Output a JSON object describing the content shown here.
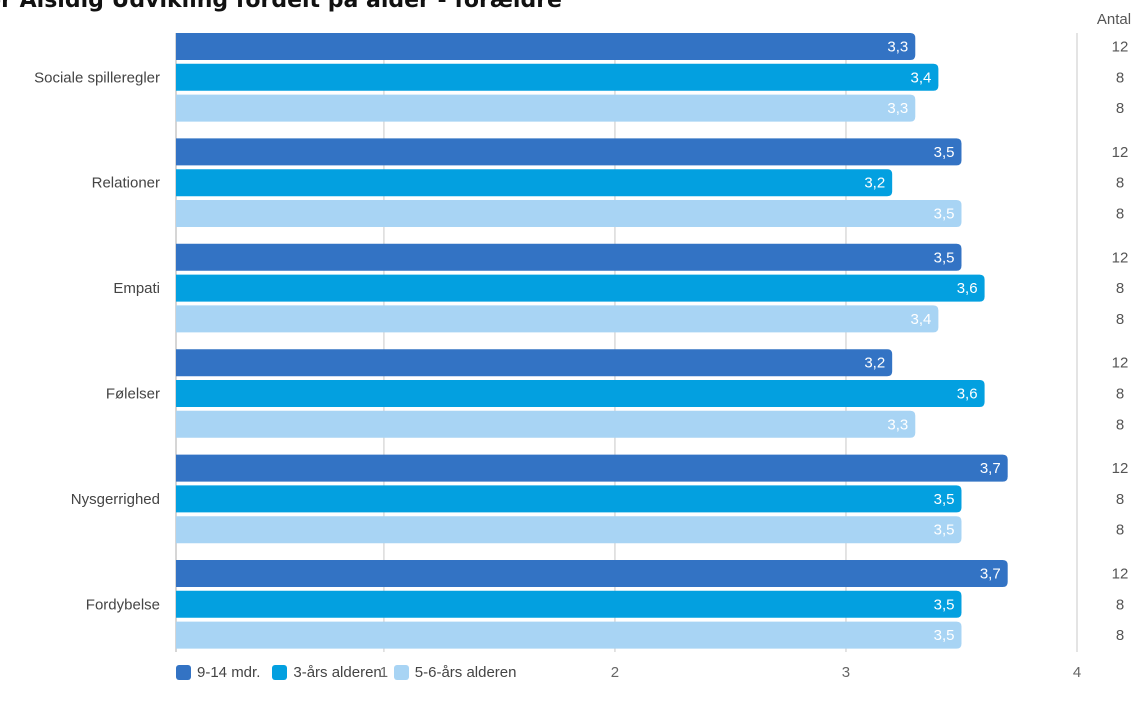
{
  "chart_data": {
    "type": "bar",
    "orientation": "horizontal",
    "title": "or Alsidig Udvikling fordelt på alder - forældre",
    "categories": [
      "Sociale spilleregler",
      "Relationer",
      "Empati",
      "Følelser",
      "Nysgerrighed",
      "Fordybelse"
    ],
    "series": [
      {
        "name": "9-14 mdr.",
        "color": "#3373c4",
        "values": [
          3.3,
          3.5,
          3.5,
          3.2,
          3.7,
          3.7
        ],
        "labels": [
          "3,3",
          "3,5",
          "3,5",
          "3,2",
          "3,7",
          "3,7"
        ],
        "counts": [
          "12",
          "12",
          "12",
          "12",
          "12",
          "12"
        ]
      },
      {
        "name": "3-års alderen",
        "color": "#03a0e0",
        "values": [
          3.4,
          3.2,
          3.6,
          3.6,
          3.5,
          3.5
        ],
        "labels": [
          "3,4",
          "3,2",
          "3,6",
          "3,6",
          "3,5",
          "3,5"
        ],
        "counts": [
          "8",
          "8",
          "8",
          "8",
          "8",
          "8"
        ]
      },
      {
        "name": "5-6-års alderen",
        "color": "#a8d4f4",
        "values": [
          3.3,
          3.5,
          3.4,
          3.3,
          3.5,
          3.5
        ],
        "labels": [
          "3,3",
          "3,5",
          "3,4",
          "3,3",
          "3,5",
          "3,5"
        ],
        "counts": [
          "8",
          "8",
          "8",
          "8",
          "8",
          "8"
        ]
      }
    ],
    "x_ticks": [
      {
        "value": 1,
        "label": "1"
      },
      {
        "value": 2,
        "label": "2"
      },
      {
        "value": 3,
        "label": "3"
      },
      {
        "value": 4,
        "label": "4"
      }
    ],
    "xlim": [
      0.1,
      4
    ],
    "count_header": "Antal",
    "grid": true,
    "legend_position": "bottom-left"
  }
}
